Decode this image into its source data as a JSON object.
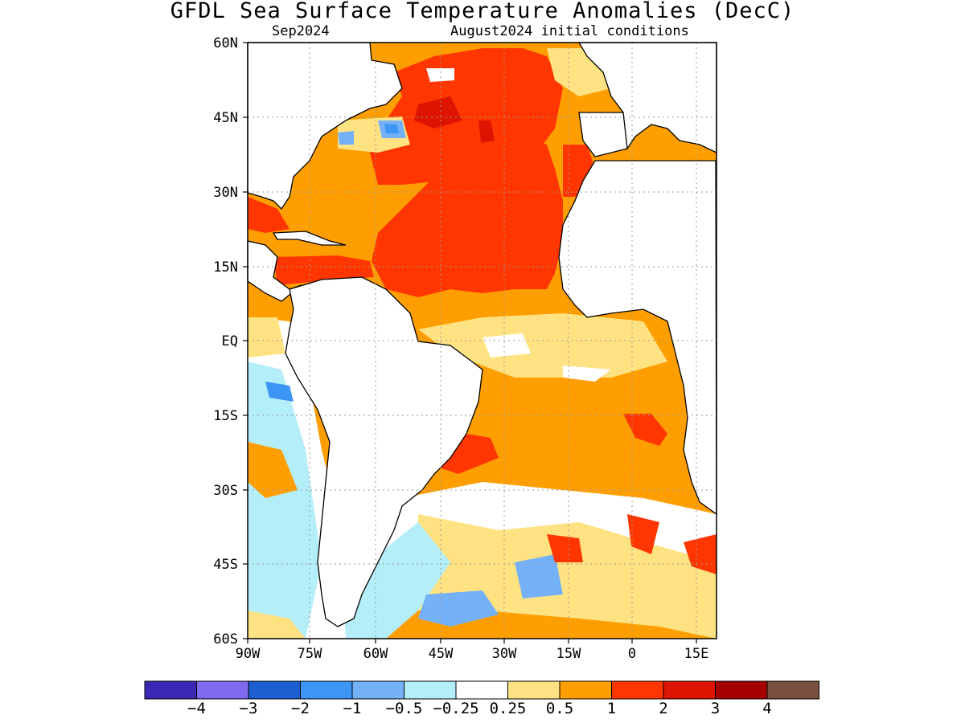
{
  "title": "GFDL Sea Surface Temperature Anomalies (DecC)",
  "subtitle_left": "Sep2024",
  "subtitle_right": "August2024 initial conditions",
  "lat_labels": [
    "60N",
    "45N",
    "30N",
    "15N",
    "EQ",
    "15S",
    "30S",
    "45S",
    "60S"
  ],
  "lon_labels": [
    "90W",
    "75W",
    "60W",
    "45W",
    "30W",
    "15W",
    "0",
    "15E"
  ],
  "colorbar": {
    "colors": [
      "#3b28b4",
      "#7d6aee",
      "#1b5fd0",
      "#3d95f5",
      "#74b1f8",
      "#b4eef8",
      "#ffffff",
      "#ffe282",
      "#ff9e00",
      "#ff3600",
      "#dd1400",
      "#a50000",
      "#7a5040"
    ],
    "labels": [
      "-4",
      "-3",
      "-2",
      "-1",
      "-0.5",
      "-0.25",
      "0.25",
      "0.5",
      "1",
      "2",
      "3",
      "4"
    ]
  }
}
